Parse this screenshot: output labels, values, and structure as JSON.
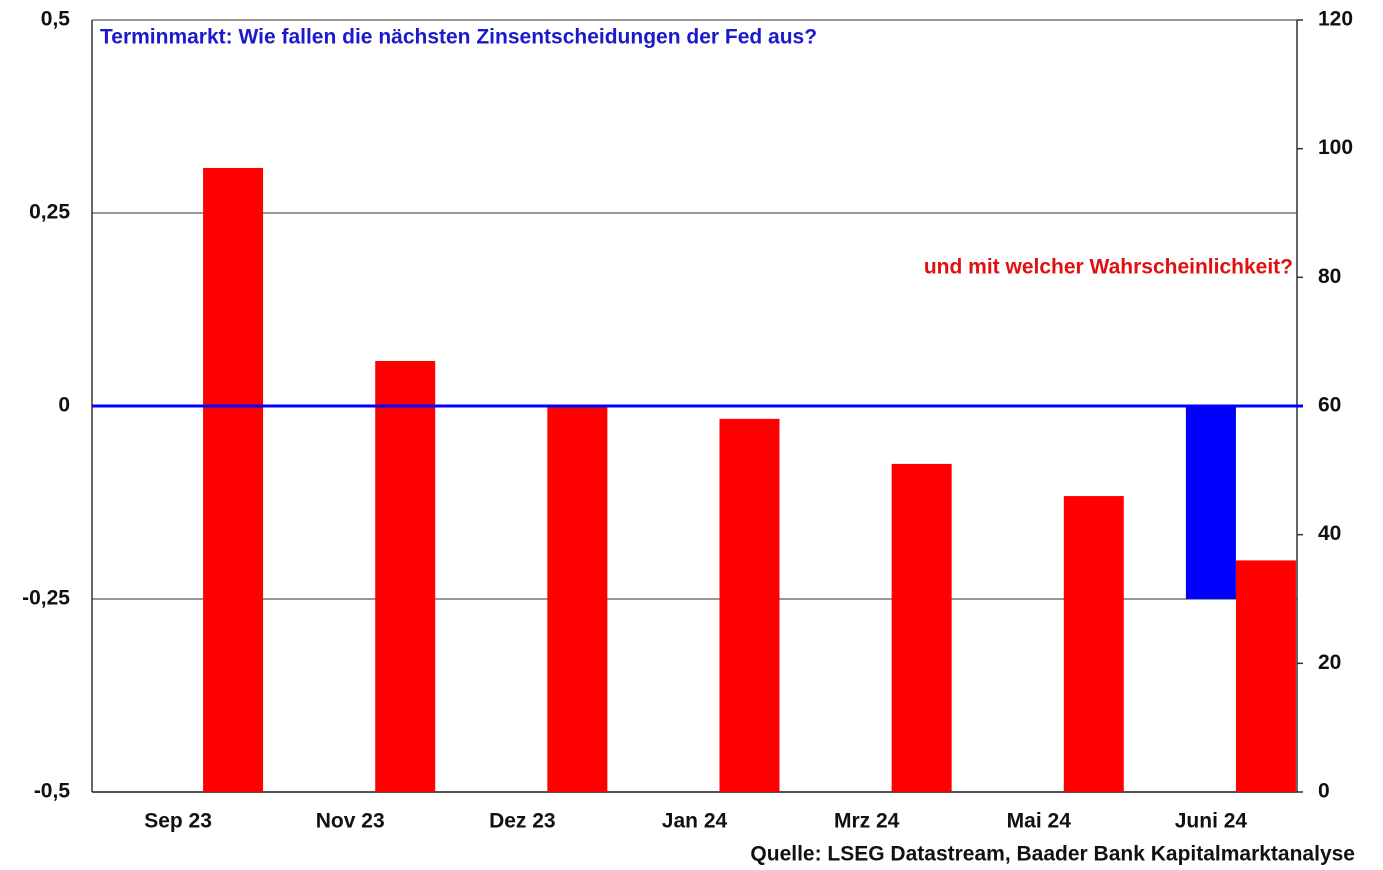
{
  "chart_data": {
    "type": "bar",
    "title": "Terminmarkt: Wie fallen die nächsten Zinsentscheidungen der Fed aus?",
    "annotation": "und mit welcher Wahrscheinlichkeit?",
    "source": "Quelle: LSEG Datastream, Baader Bank Kapitalmarktanalyse",
    "categories": [
      "Sep 23",
      "Nov 23",
      "Dez 23",
      "Jan 24",
      "Mrz 24",
      "Mai 24",
      "Juni 24"
    ],
    "series": [
      {
        "color": "#0000ff",
        "values": [
          0,
          0,
          0,
          0,
          0,
          0,
          -0.25
        ]
      },
      {
        "color": "#ff0000",
        "axis": "y2",
        "values": [
          97,
          67,
          60,
          58,
          51,
          46,
          36
        ]
      }
    ],
    "ylim": [
      -0.5,
      0.5
    ],
    "yticks": [
      {
        "value": -0.5,
        "label": "-0,5"
      },
      {
        "value": -0.25,
        "label": "-0,25"
      },
      0,
      {
        "value": 0.25,
        "label": "0,25"
      },
      {
        "value": 0.5,
        "label": "0,5"
      }
    ],
    "y2lim": [
      0,
      120
    ],
    "y2ticks": [
      0,
      20,
      40,
      60,
      80,
      100,
      120
    ],
    "grid": true
  }
}
